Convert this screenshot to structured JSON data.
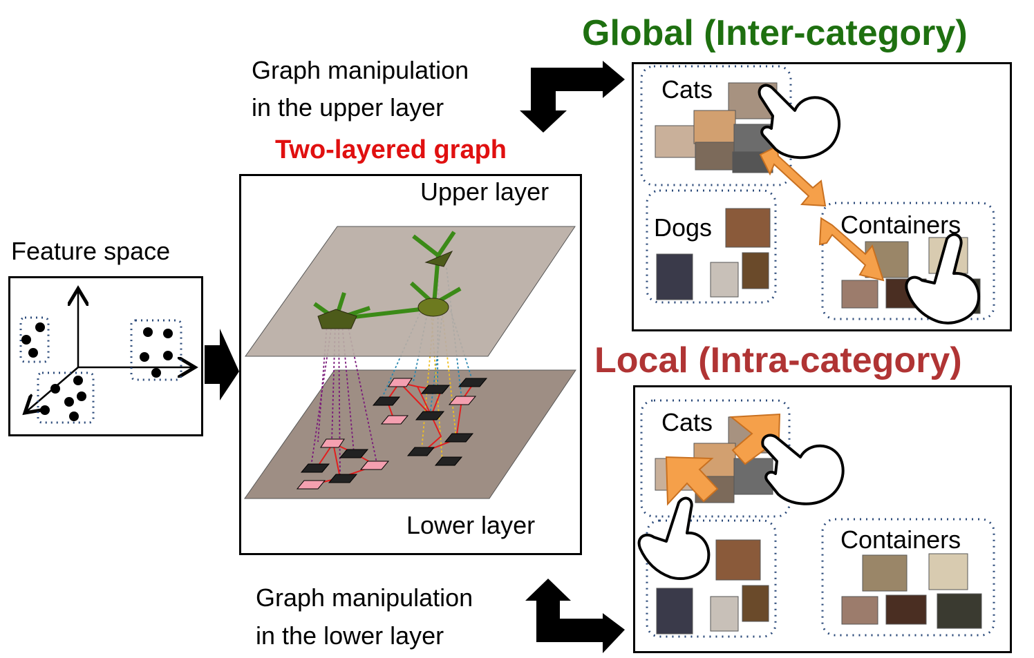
{
  "colors": {
    "global_heading": "#1e7010",
    "local_heading": "#b03434",
    "two_layered_title": "#e01010",
    "upper_plane": "#b8aca4",
    "lower_plane": "#9e8e84",
    "graph_green": "#3b8a17",
    "node_olive": "#4d5b1a",
    "pink_node": "#f4a0b0",
    "orange_arrow": "#f5a04a",
    "dotted_blue": "#2b4a7a"
  },
  "feature_space": {
    "label": "Feature space"
  },
  "two_layered": {
    "title": "Two-layered graph",
    "upper_label": "Upper layer",
    "lower_label": "Lower layer"
  },
  "upper_manipulation": {
    "line1": "Graph manipulation",
    "line2": "in the upper layer"
  },
  "lower_manipulation": {
    "line1": "Graph manipulation",
    "line2": "in the lower layer"
  },
  "global_panel": {
    "heading": "Global (Inter-category)",
    "groups": [
      "Cats",
      "Dogs",
      "Containers"
    ]
  },
  "local_panel": {
    "heading": "Local  (Intra-category)",
    "groups": [
      "Cats",
      "Containers"
    ]
  },
  "icons": {
    "hand": "pointing-hand-icon",
    "arrow": "black-elbow-arrow-icon",
    "double_arrow": "orange-double-arrow-icon"
  }
}
